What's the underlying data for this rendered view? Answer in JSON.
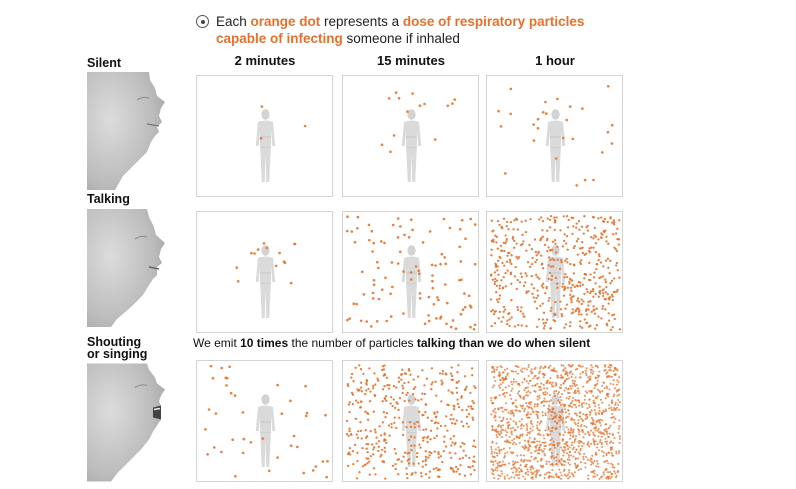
{
  "legend": {
    "icon": "dot-in-circle-icon",
    "text_1": "Each ",
    "hl_1": "orange dot",
    "text_2": " represents a ",
    "hl_2": "dose of respiratory particles capable of infecting",
    "text_3": " someone if inhaled"
  },
  "columns": [
    "2 minutes",
    "15 minutes",
    "1 hour"
  ],
  "rows": [
    {
      "label": "Silent",
      "dots": [
        3,
        14,
        27
      ]
    },
    {
      "label": "Talking",
      "dots": [
        14,
        105,
        520
      ]
    },
    {
      "label": "Shouting\nor singing",
      "dots": [
        40,
        420,
        1300
      ]
    }
  ],
  "note": {
    "text_1": "We emit ",
    "bold_1": "10 times",
    "text_2": " the number of particles ",
    "bold_2": "talking than we do when silent"
  },
  "colors": {
    "dot": "#e8702a",
    "figure": "#d9d9d9",
    "panel_border": "#d4d4d4"
  }
}
